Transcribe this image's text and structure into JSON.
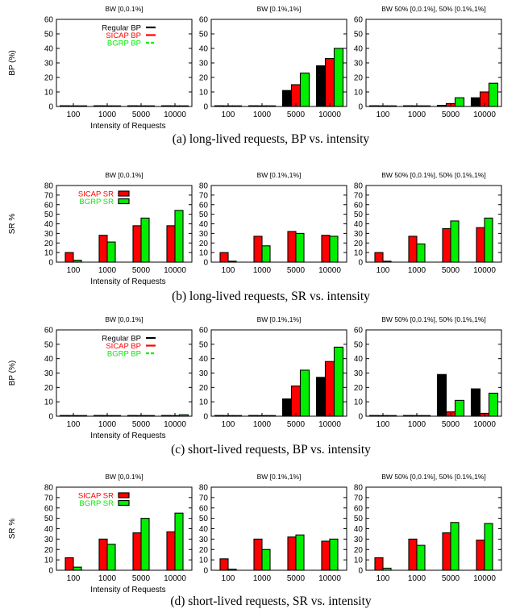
{
  "colors": {
    "regular": "#000000",
    "sicap": "#ff0000",
    "bgrp": "#00ee00",
    "bar_edge": "#000000"
  },
  "x_title": "Intensity of Requests",
  "legend_labels": {
    "regular": "Regular BP",
    "sicap": "SICAP BP",
    "bgrp": "BGRP BP",
    "sicap_sr": "SICAP SR",
    "bgrp_sr": "BGRP SR"
  },
  "chart_data": [
    {
      "type": "bar",
      "row": 0,
      "caption": "(a) long-lived requests, BP vs. intensity",
      "ylabel": "BP (%)",
      "ylim": [
        0,
        60
      ],
      "yticks": [
        0,
        10,
        20,
        30,
        40,
        50,
        60
      ],
      "categories": [
        "100",
        "1000",
        "5000",
        "10000"
      ],
      "series_keys": [
        "regular",
        "sicap",
        "bgrp"
      ],
      "legend_on_panel": 0,
      "panels": [
        {
          "title": "BW [0,0.1%]",
          "series": [
            {
              "name": "Regular BP",
              "key": "regular",
              "values": [
                0.5,
                0.5,
                0.5,
                0.5
              ]
            },
            {
              "name": "SICAP BP",
              "key": "sicap",
              "values": [
                0.3,
                0.3,
                0.3,
                0.3
              ]
            },
            {
              "name": "BGRP BP",
              "key": "bgrp",
              "values": [
                0.3,
                0.3,
                0.3,
                0.3
              ]
            }
          ]
        },
        {
          "title": "BW [0.1%,1%]",
          "series": [
            {
              "name": "Regular BP",
              "key": "regular",
              "values": [
                0.5,
                0.5,
                11,
                28
              ]
            },
            {
              "name": "SICAP BP",
              "key": "sicap",
              "values": [
                0.3,
                0.3,
                15,
                33
              ]
            },
            {
              "name": "BGRP BP",
              "key": "bgrp",
              "values": [
                0.3,
                0.3,
                23,
                40
              ]
            }
          ]
        },
        {
          "title": "BW 50% [0,0.1%], 50% [0.1%,1%]",
          "series": [
            {
              "name": "Regular BP",
              "key": "regular",
              "values": [
                0.5,
                0.5,
                0.8,
                6
              ]
            },
            {
              "name": "SICAP BP",
              "key": "sicap",
              "values": [
                0.3,
                0.3,
                2,
                10
              ]
            },
            {
              "name": "BGRP BP",
              "key": "bgrp",
              "values": [
                0.3,
                0.3,
                6,
                16
              ]
            }
          ]
        }
      ]
    },
    {
      "type": "bar",
      "row": 1,
      "caption": "(b) long-lived requests, SR vs. intensity",
      "ylabel": "SR %",
      "ylim": [
        0,
        80
      ],
      "yticks": [
        0,
        10,
        20,
        30,
        40,
        50,
        60,
        70,
        80
      ],
      "categories": [
        "100",
        "1000",
        "5000",
        "10000"
      ],
      "series_keys": [
        "sicap",
        "bgrp"
      ],
      "legend_on_panel": 0,
      "panels": [
        {
          "title": "BW [0,0.1%]",
          "series": [
            {
              "name": "SICAP SR",
              "key": "sicap",
              "values": [
                10,
                28,
                38,
                38
              ]
            },
            {
              "name": "BGRP SR",
              "key": "bgrp",
              "values": [
                2,
                21,
                46,
                54
              ]
            }
          ]
        },
        {
          "title": "BW [0.1%,1%]",
          "series": [
            {
              "name": "SICAP SR",
              "key": "sicap",
              "values": [
                10,
                27,
                32,
                28
              ]
            },
            {
              "name": "BGRP SR",
              "key": "bgrp",
              "values": [
                1,
                17,
                30,
                27
              ]
            }
          ]
        },
        {
          "title": "BW 50% [0,0.1%], 50% [0.1%,1%]",
          "series": [
            {
              "name": "SICAP SR",
              "key": "sicap",
              "values": [
                10,
                27,
                35,
                36
              ]
            },
            {
              "name": "BGRP SR",
              "key": "bgrp",
              "values": [
                1,
                19,
                43,
                46
              ]
            }
          ]
        }
      ]
    },
    {
      "type": "bar",
      "row": 2,
      "caption": "(c) short-lived requests, BP vs. intensity",
      "ylabel": "BP (%)",
      "ylim": [
        0,
        60
      ],
      "yticks": [
        0,
        10,
        20,
        30,
        40,
        50,
        60
      ],
      "categories": [
        "100",
        "1000",
        "5000",
        "10000"
      ],
      "series_keys": [
        "regular",
        "sicap",
        "bgrp"
      ],
      "legend_on_panel": 0,
      "panels": [
        {
          "title": "BW [0,0.1%]",
          "series": [
            {
              "name": "Regular BP",
              "key": "regular",
              "values": [
                0.5,
                0.5,
                0.5,
                0.5
              ]
            },
            {
              "name": "SICAP BP",
              "key": "sicap",
              "values": [
                0.3,
                0.3,
                0.3,
                0.3
              ]
            },
            {
              "name": "BGRP BP",
              "key": "bgrp",
              "values": [
                0.3,
                0.3,
                0.3,
                1
              ]
            }
          ]
        },
        {
          "title": "BW [0.1%,1%]",
          "series": [
            {
              "name": "Regular BP",
              "key": "regular",
              "values": [
                0.5,
                0.5,
                12,
                27
              ]
            },
            {
              "name": "SICAP BP",
              "key": "sicap",
              "values": [
                0.3,
                0.3,
                21,
                38
              ]
            },
            {
              "name": "BGRP BP",
              "key": "bgrp",
              "values": [
                0.3,
                0.3,
                32,
                48
              ]
            }
          ]
        },
        {
          "title": "BW 50% [0,0.1%], 50% [0.1%,1%]",
          "series": [
            {
              "name": "Regular BP",
              "key": "regular",
              "values": [
                0.5,
                0.5,
                29,
                19
              ]
            },
            {
              "name": "SICAP BP",
              "key": "sicap",
              "values": [
                0.3,
                0.3,
                3,
                2
              ]
            },
            {
              "name": "BGRP BP",
              "key": "bgrp",
              "values": [
                0.3,
                0.3,
                11,
                16
              ]
            }
          ]
        }
      ]
    },
    {
      "type": "bar",
      "row": 3,
      "caption": "(d) short-lived requests, SR vs. intensity",
      "ylabel": "SR %",
      "ylim": [
        0,
        80
      ],
      "yticks": [
        0,
        10,
        20,
        30,
        40,
        50,
        60,
        70,
        80
      ],
      "categories": [
        "100",
        "1000",
        "5000",
        "10000"
      ],
      "series_keys": [
        "sicap",
        "bgrp"
      ],
      "legend_on_panel": 0,
      "panels": [
        {
          "title": "BW [0,0.1%]",
          "series": [
            {
              "name": "SICAP SR",
              "key": "sicap",
              "values": [
                12,
                30,
                36,
                37
              ]
            },
            {
              "name": "BGRP SR",
              "key": "bgrp",
              "values": [
                3,
                25,
                50,
                55
              ]
            }
          ]
        },
        {
          "title": "BW [0.1%,1%]",
          "series": [
            {
              "name": "SICAP SR",
              "key": "sicap",
              "values": [
                11,
                30,
                32,
                28
              ]
            },
            {
              "name": "BGRP SR",
              "key": "bgrp",
              "values": [
                1,
                20,
                34,
                30
              ]
            }
          ]
        },
        {
          "title": "BW 50% [0,0.1%], 50% [0.1%,1%]",
          "series": [
            {
              "name": "SICAP SR",
              "key": "sicap",
              "values": [
                12,
                30,
                36,
                29
              ]
            },
            {
              "name": "BGRP SR",
              "key": "bgrp",
              "values": [
                2,
                24,
                46,
                45
              ]
            }
          ]
        }
      ]
    }
  ]
}
